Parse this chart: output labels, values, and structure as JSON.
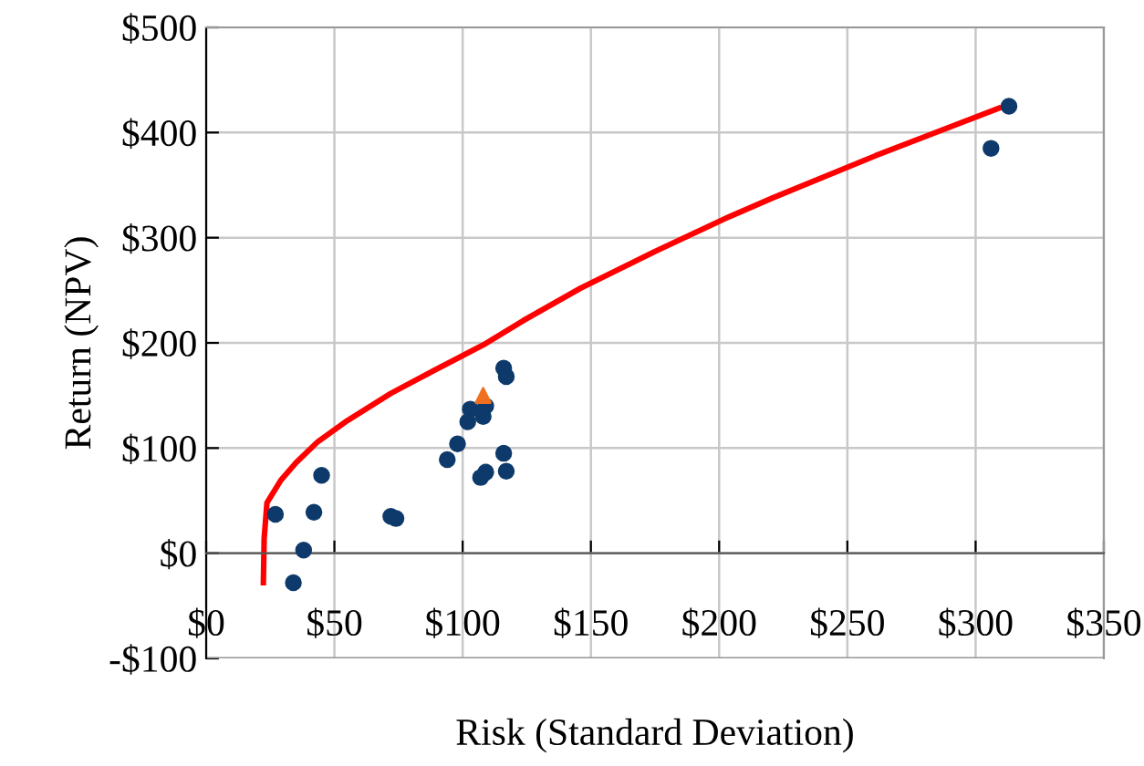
{
  "chart_data": {
    "type": "scatter",
    "xlabel": "Risk (Standard Deviation)",
    "ylabel": "Return (NPV)",
    "xlim": [
      0,
      350
    ],
    "ylim": [
      -100,
      500
    ],
    "xticks": [
      {
        "value": 0,
        "label": "$0"
      },
      {
        "value": 50,
        "label": "$50"
      },
      {
        "value": 100,
        "label": "$100"
      },
      {
        "value": 150,
        "label": "$150"
      },
      {
        "value": 200,
        "label": "$200"
      },
      {
        "value": 250,
        "label": "$250"
      },
      {
        "value": 300,
        "label": "$300"
      },
      {
        "value": 350,
        "label": "$350"
      }
    ],
    "yticks": [
      {
        "value": -100,
        "label": "-$100"
      },
      {
        "value": 0,
        "label": "$0"
      },
      {
        "value": 100,
        "label": "$100"
      },
      {
        "value": 200,
        "label": "$200"
      },
      {
        "value": 300,
        "label": "$300"
      },
      {
        "value": 400,
        "label": "$400"
      },
      {
        "value": 500,
        "label": "$500"
      }
    ],
    "grid": true,
    "series": [
      {
        "color": "#0d3a6b",
        "marker": "circle",
        "x": [
          27,
          34,
          38,
          42,
          45,
          72,
          74,
          94,
          98,
          102,
          103,
          108,
          109,
          107,
          109,
          116,
          117,
          116,
          117,
          313,
          306
        ],
        "values": [
          37,
          -28,
          3,
          39,
          74,
          35,
          33,
          89,
          104,
          125,
          137,
          130,
          140,
          72,
          77,
          95,
          78,
          176,
          168,
          425,
          385
        ]
      },
      {
        "color": "#f07020",
        "marker": "triangle",
        "x": [
          108
        ],
        "values": [
          150
        ]
      },
      {
        "type": "line",
        "color": "#ff0000",
        "x": [
          22.3,
          22.6,
          23.7,
          29,
          35,
          43.5,
          55,
          72,
          89,
          108,
          123.5,
          146,
          175,
          204,
          221,
          261,
          309
        ],
        "values": [
          -28,
          14,
          48,
          69,
          86,
          106,
          126,
          152,
          174,
          198,
          221,
          252,
          287,
          320,
          338,
          378,
          423
        ]
      }
    ]
  }
}
